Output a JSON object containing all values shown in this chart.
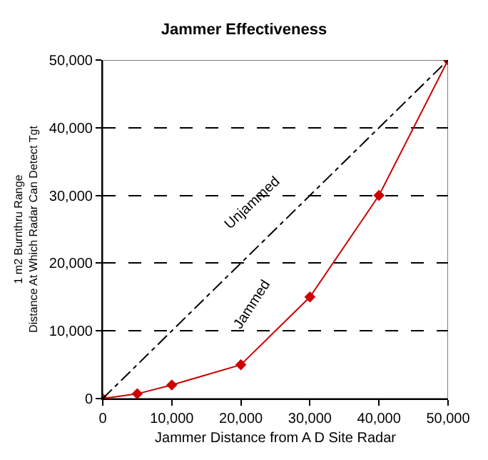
{
  "chart_data": {
    "type": "line",
    "title": "Jammer Effectiveness",
    "xlabel": "Jammer Distance from A D Site Radar",
    "ylabel": "1 m2 Burnthru Range\nDistance At Which Radar Can Detect Tgt",
    "series": [
      {
        "name": "Jammed",
        "color": "#cc0000",
        "marker": "diamond",
        "line_style": "solid",
        "x": [
          0,
          5000,
          10000,
          20000,
          30000,
          40000,
          50000
        ],
        "values": [
          0,
          700,
          2000,
          5000,
          15000,
          30000,
          50000
        ]
      },
      {
        "name": "Unjammed",
        "color": "#000000",
        "marker": "none",
        "line_style": "dashdot",
        "x": [
          0,
          50000
        ],
        "values": [
          0,
          50000
        ]
      }
    ],
    "xlim": [
      0,
      50000
    ],
    "ylim": [
      0,
      50000
    ],
    "xticks": [
      {
        "value": 0,
        "label": "0"
      },
      {
        "value": 10000,
        "label": "10,000"
      },
      {
        "value": 20000,
        "label": "20,000"
      },
      {
        "value": 30000,
        "label": "30,000"
      },
      {
        "value": 40000,
        "label": "40,000"
      },
      {
        "value": 50000,
        "label": "50,000"
      }
    ],
    "yticks": [
      {
        "value": 0,
        "label": "0"
      },
      {
        "value": 10000,
        "label": "10,000"
      },
      {
        "value": 20000,
        "label": "20,000"
      },
      {
        "value": 30000,
        "label": "30,000"
      },
      {
        "value": 40000,
        "label": "40,000"
      },
      {
        "value": 50000,
        "label": "50,000"
      }
    ],
    "grid": "y",
    "legend": false
  }
}
